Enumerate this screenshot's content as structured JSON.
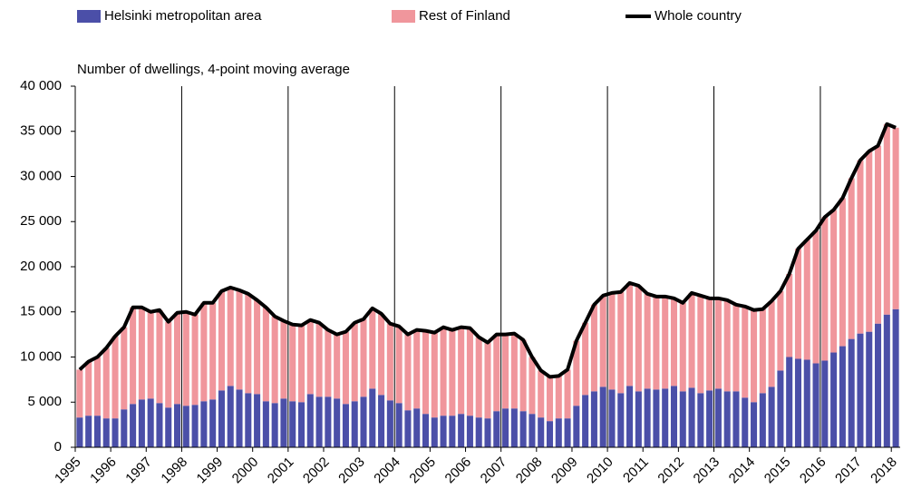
{
  "chart_data": {
    "type": "bar",
    "stacked": true,
    "subtitle": "Number of dwellings, 4-point moving average",
    "categories": [
      "1995",
      null,
      null,
      null,
      "1996",
      null,
      null,
      null,
      "1997",
      null,
      null,
      null,
      "1998",
      null,
      null,
      null,
      "1999",
      null,
      null,
      null,
      "2000",
      null,
      null,
      null,
      "2001",
      null,
      null,
      null,
      "2002",
      null,
      null,
      null,
      "2003",
      null,
      null,
      null,
      "2004",
      null,
      null,
      null,
      "2005",
      null,
      null,
      null,
      "2006",
      null,
      null,
      null,
      "2007",
      null,
      null,
      null,
      "2008",
      null,
      null,
      null,
      "2009",
      null,
      null,
      null,
      "2010",
      null,
      null,
      null,
      "2011",
      null,
      null,
      null,
      "2012",
      null,
      null,
      null,
      "2013",
      null,
      null,
      null,
      "2014",
      null,
      null,
      null,
      "2015",
      null,
      null,
      null,
      "2016",
      null,
      null,
      null,
      "2017",
      null,
      null,
      null,
      "2018"
    ],
    "series": [
      {
        "name": "Helsinki metropolitan area",
        "color": "#4b4fa8",
        "type": "bar",
        "values": [
          3300,
          3500,
          3500,
          3200,
          3200,
          4200,
          4800,
          5300,
          5400,
          4900,
          4400,
          4800,
          4600,
          4700,
          5100,
          5300,
          6300,
          6800,
          6400,
          6000,
          5900,
          5100,
          4900,
          5400,
          5100,
          5000,
          5900,
          5600,
          5600,
          5400,
          4800,
          5100,
          5600,
          6500,
          5800,
          5200,
          4900,
          4100,
          4300,
          3700,
          3300,
          3500,
          3500,
          3700,
          3500,
          3300,
          3200,
          4000,
          4300,
          4300,
          4000,
          3700,
          3300,
          2900,
          3200,
          3200,
          4600,
          5800,
          6200,
          6700,
          6400,
          6000,
          6800,
          6200,
          6500,
          6400,
          6500,
          6800,
          6200,
          6600,
          6000,
          6300,
          6500,
          6200,
          6200,
          5500,
          5000,
          6000,
          6700,
          8500,
          10000,
          9800,
          9700,
          9300,
          9600,
          10500,
          11200,
          12000,
          12600,
          12800,
          13700,
          14700,
          15300
        ]
      },
      {
        "name": "Rest of Finland",
        "color": "#f0969c",
        "type": "bar",
        "values": [
          5300,
          6000,
          6500,
          7800,
          9100,
          9100,
          10700,
          10200,
          9600,
          10300,
          9500,
          10100,
          10400,
          10000,
          10900,
          10700,
          11000,
          10900,
          11000,
          11000,
          10400,
          10400,
          9600,
          8600,
          8500,
          8500,
          8200,
          8200,
          7400,
          7100,
          8000,
          8700,
          8600,
          8900,
          9000,
          8500,
          8500,
          8400,
          8700,
          9200,
          9400,
          9800,
          9500,
          9600,
          9700,
          8900,
          8400,
          8500,
          8200,
          8300,
          7900,
          6300,
          5200,
          4900,
          4700,
          5400,
          7200,
          8000,
          9600,
          10100,
          10700,
          11200,
          11400,
          11700,
          10500,
          10300,
          10200,
          9700,
          9800,
          10500,
          10800,
          10200,
          10000,
          10100,
          9600,
          10100,
          10200,
          9300,
          9500,
          8800,
          9200,
          12200,
          13300,
          14700,
          15900,
          15800,
          16400,
          17800,
          19200,
          20000,
          19700,
          21100,
          20100
        ]
      },
      {
        "name": "Whole country",
        "color": "#000000",
        "type": "line",
        "values": [
          8600,
          9500,
          10000,
          11000,
          12300,
          13300,
          15500,
          15500,
          15000,
          15200,
          13900,
          14900,
          15000,
          14700,
          16000,
          16000,
          17300,
          17700,
          17400,
          17000,
          16300,
          15500,
          14500,
          14000,
          13600,
          13500,
          14100,
          13800,
          13000,
          12500,
          12800,
          13800,
          14200,
          15400,
          14800,
          13700,
          13400,
          12500,
          13000,
          12900,
          12700,
          13300,
          13000,
          13300,
          13200,
          12200,
          11600,
          12500,
          12500,
          12600,
          11900,
          10000,
          8500,
          7800,
          7900,
          8600,
          11800,
          13800,
          15800,
          16800,
          17100,
          17200,
          18200,
          17900,
          17000,
          16700,
          16700,
          16500,
          16000,
          17100,
          16800,
          16500,
          16500,
          16300,
          15800,
          15600,
          15200,
          15300,
          16200,
          17300,
          19200,
          22000,
          23000,
          24000,
          25500,
          26300,
          27600,
          29800,
          31800,
          32800,
          33400,
          35800,
          35400
        ]
      }
    ],
    "ylim": [
      0,
      40000
    ],
    "yticks": [
      0,
      {
        "value": 5000,
        "label": "5 000"
      },
      {
        "value": 10000,
        "label": "10 000"
      },
      {
        "value": 15000,
        "label": "15 000"
      },
      {
        "value": 20000,
        "label": "20 000"
      },
      {
        "value": 25000,
        "label": "25 000"
      },
      {
        "value": 30000,
        "label": "30 000"
      },
      {
        "value": 35000,
        "label": "35 000"
      },
      {
        "value": 40000,
        "label": "40 000"
      }
    ]
  }
}
